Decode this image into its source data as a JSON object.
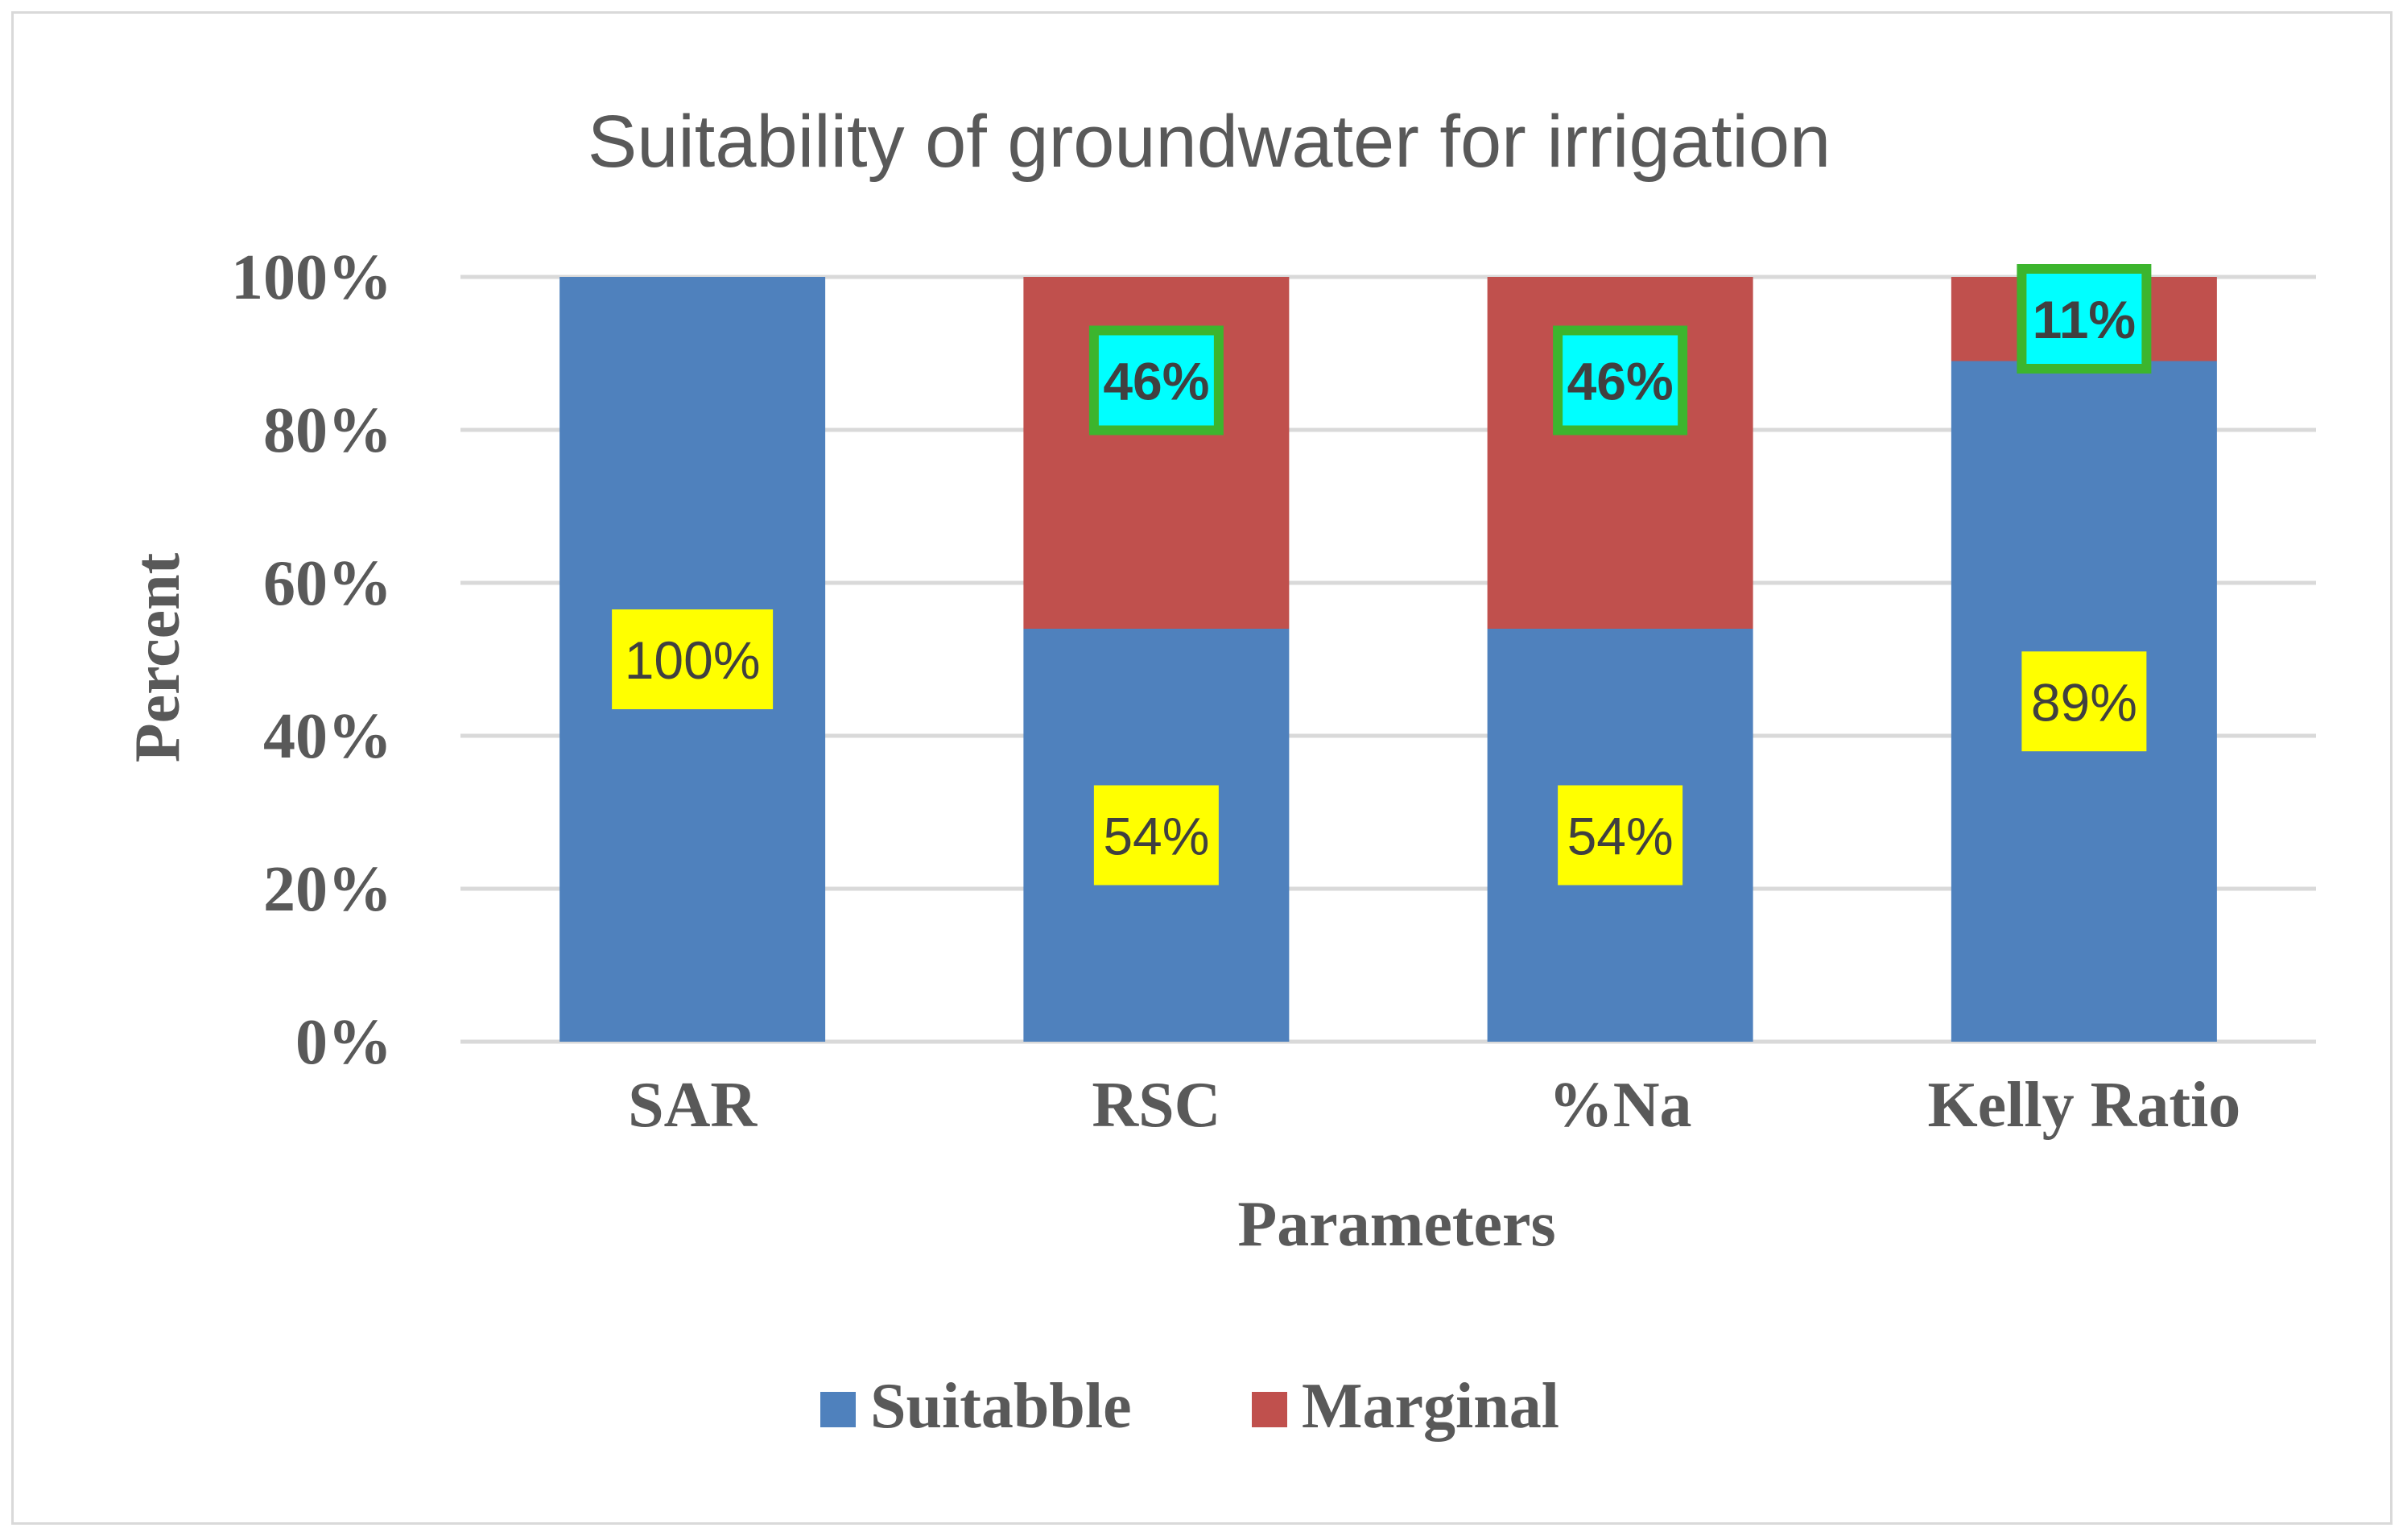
{
  "chart_data": {
    "type": "bar",
    "stacked": true,
    "title": "Suitability of groundwater for irrigation",
    "xlabel": "Parameters",
    "ylabel": "Percent",
    "categories": [
      "SAR",
      "RSC",
      "%Na",
      "Kelly Ratio"
    ],
    "series": [
      {
        "name": "Suitabble",
        "color": "#4f81bd",
        "values": [
          100,
          54,
          54,
          89
        ],
        "labels": [
          "100%",
          "54%",
          "54%",
          "89%"
        ],
        "label_style": {
          "fill": "#ffff00",
          "border": "none"
        }
      },
      {
        "name": "Marginal",
        "color": "#c0504d",
        "values": [
          0,
          46,
          46,
          11
        ],
        "labels": [
          "",
          "46%",
          "46%",
          "11%"
        ],
        "label_style": {
          "fill": "#00ffff",
          "border": "#3cb52e"
        }
      }
    ],
    "yticks": [
      "0%",
      "20%",
      "40%",
      "60%",
      "80%",
      "100%"
    ],
    "ylim": [
      0,
      100
    ],
    "grid": true,
    "legend": "bottom"
  }
}
